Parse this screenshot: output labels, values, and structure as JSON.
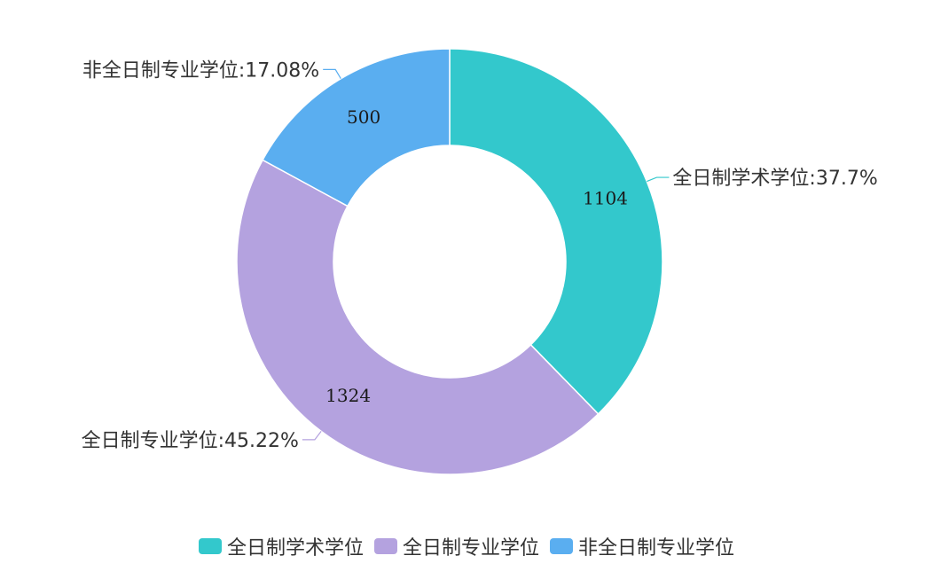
{
  "chart_data": {
    "type": "pie",
    "subtype": "donut",
    "title": "",
    "categories": [
      "全日制学术学位",
      "全日制专业学位",
      "非全日制专业学位"
    ],
    "values": [
      1104,
      1324,
      500
    ],
    "percent_labels": [
      "全日制学术学位:37.7%",
      "全日制专业学位:45.22%",
      "非全日制专业学位:17.08%"
    ],
    "colors": [
      "#33C8CC",
      "#B4A2DF",
      "#5AAEF0"
    ],
    "legend_position": "bottom"
  }
}
